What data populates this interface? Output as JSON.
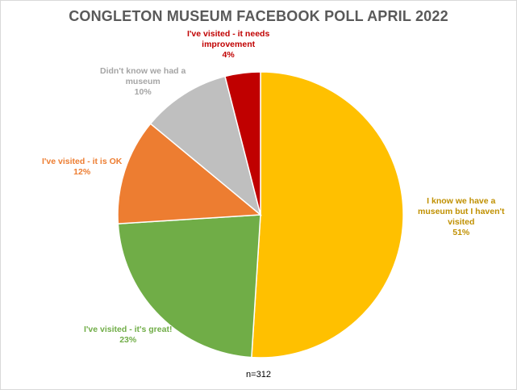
{
  "chart_data": {
    "type": "pie",
    "title": "CONGLETON MUSEUM FACEBOOK POLL APRIL 2022",
    "slices": [
      {
        "label_lines": [
          "I know we have a",
          "museum but I haven't",
          "visited"
        ],
        "label": "I know we have a museum but I haven't visited",
        "value": 51,
        "percent": "51%",
        "color": "#FFC000",
        "label_color": "#C09000"
      },
      {
        "label_lines": [
          "I've visited - it's great!"
        ],
        "label": "I've visited - it's great!",
        "value": 23,
        "percent": "23%",
        "color": "#70AD47",
        "label_color": "#70AD47"
      },
      {
        "label_lines": [
          "I've visited - it is OK"
        ],
        "label": "I've visited - it is OK",
        "value": 12,
        "percent": "12%",
        "color": "#ED7D31",
        "label_color": "#ED7D31"
      },
      {
        "label_lines": [
          "Didn't know we had a",
          "museum"
        ],
        "label": "Didn't know we had a museum",
        "value": 10,
        "percent": "10%",
        "color": "#BFBFBF",
        "label_color": "#A5A5A5"
      },
      {
        "label_lines": [
          "I've visited - it needs",
          "improvement"
        ],
        "label": "I've visited - it needs improvement",
        "value": 4,
        "percent": "4%",
        "color": "#C00000",
        "label_color": "#C00000"
      }
    ],
    "footnote": "n=312"
  }
}
